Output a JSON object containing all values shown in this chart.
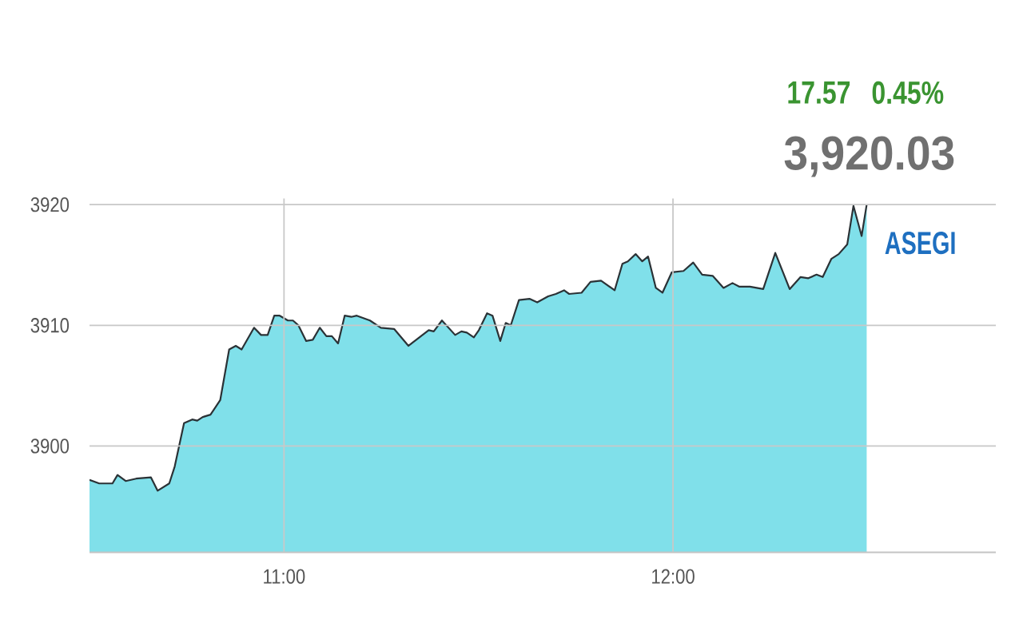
{
  "chart_data": {
    "type": "area",
    "annotations": [
      "17.57",
      "0.45%",
      "3,920.03"
    ],
    "x": [
      10.5,
      10.525,
      10.559,
      10.572,
      10.593,
      10.62,
      10.658,
      10.675,
      10.705,
      10.719,
      10.743,
      10.764,
      10.777,
      10.791,
      10.811,
      10.836,
      10.859,
      10.876,
      10.891,
      10.923,
      10.941,
      10.958,
      10.975,
      10.989,
      11.01,
      11.023,
      11.037,
      11.057,
      11.074,
      11.092,
      11.109,
      11.123,
      11.139,
      11.156,
      11.173,
      11.187,
      11.221,
      11.249,
      11.283,
      11.32,
      11.344,
      11.372,
      11.385,
      11.406,
      11.44,
      11.456,
      11.47,
      11.488,
      11.501,
      11.522,
      11.536,
      11.556,
      11.57,
      11.583,
      11.604,
      11.631,
      11.651,
      11.679,
      11.699,
      11.72,
      11.733,
      11.765,
      11.788,
      11.815,
      11.85,
      11.87,
      11.884,
      11.904,
      11.921,
      11.936,
      11.956,
      11.973,
      11.997,
      12.027,
      12.052,
      12.075,
      12.102,
      12.13,
      12.153,
      12.171,
      12.198,
      12.232,
      12.263,
      12.3,
      12.328,
      12.348,
      12.369,
      12.385,
      12.407,
      12.426,
      12.448,
      12.464,
      12.485,
      12.498
    ],
    "series": [
      {
        "name": "ASEGI",
        "color": "#80e0ea",
        "values": [
          3897.2,
          3896.9,
          3896.9,
          3897.6,
          3897.1,
          3897.3,
          3897.4,
          3896.3,
          3896.9,
          3898.3,
          3901.9,
          3902.2,
          3902.1,
          3902.4,
          3902.6,
          3903.8,
          3908.0,
          3908.3,
          3908.0,
          3909.8,
          3909.2,
          3909.2,
          3910.8,
          3910.8,
          3910.4,
          3910.4,
          3910.0,
          3908.7,
          3908.8,
          3909.8,
          3909.1,
          3909.1,
          3908.5,
          3910.8,
          3910.7,
          3910.8,
          3910.4,
          3909.8,
          3909.7,
          3908.3,
          3908.9,
          3909.6,
          3909.5,
          3910.4,
          3909.2,
          3909.5,
          3909.4,
          3909.0,
          3909.6,
          3911.0,
          3910.8,
          3908.7,
          3910.2,
          3910.0,
          3912.1,
          3912.2,
          3911.9,
          3912.4,
          3912.6,
          3912.9,
          3912.6,
          3912.7,
          3913.6,
          3913.7,
          3912.9,
          3915.1,
          3915.3,
          3915.9,
          3915.3,
          3915.7,
          3913.1,
          3912.7,
          3914.4,
          3914.5,
          3915.2,
          3914.2,
          3914.1,
          3913.1,
          3913.5,
          3913.2,
          3913.2,
          3913.0,
          3916.0,
          3913.0,
          3914.0,
          3913.9,
          3914.2,
          3914.0,
          3915.5,
          3915.9,
          3916.7,
          3919.9,
          3917.4,
          3920.0
        ]
      }
    ],
    "xlim": [
      10.5,
      12.83
    ],
    "ylim": [
      3891.2,
      3920.5
    ],
    "xticks": [
      {
        "value": 11,
        "label": "11:00"
      },
      {
        "value": 12,
        "label": "12:00"
      }
    ],
    "yticks": [
      3900,
      3910,
      3920
    ],
    "grid": true
  }
}
